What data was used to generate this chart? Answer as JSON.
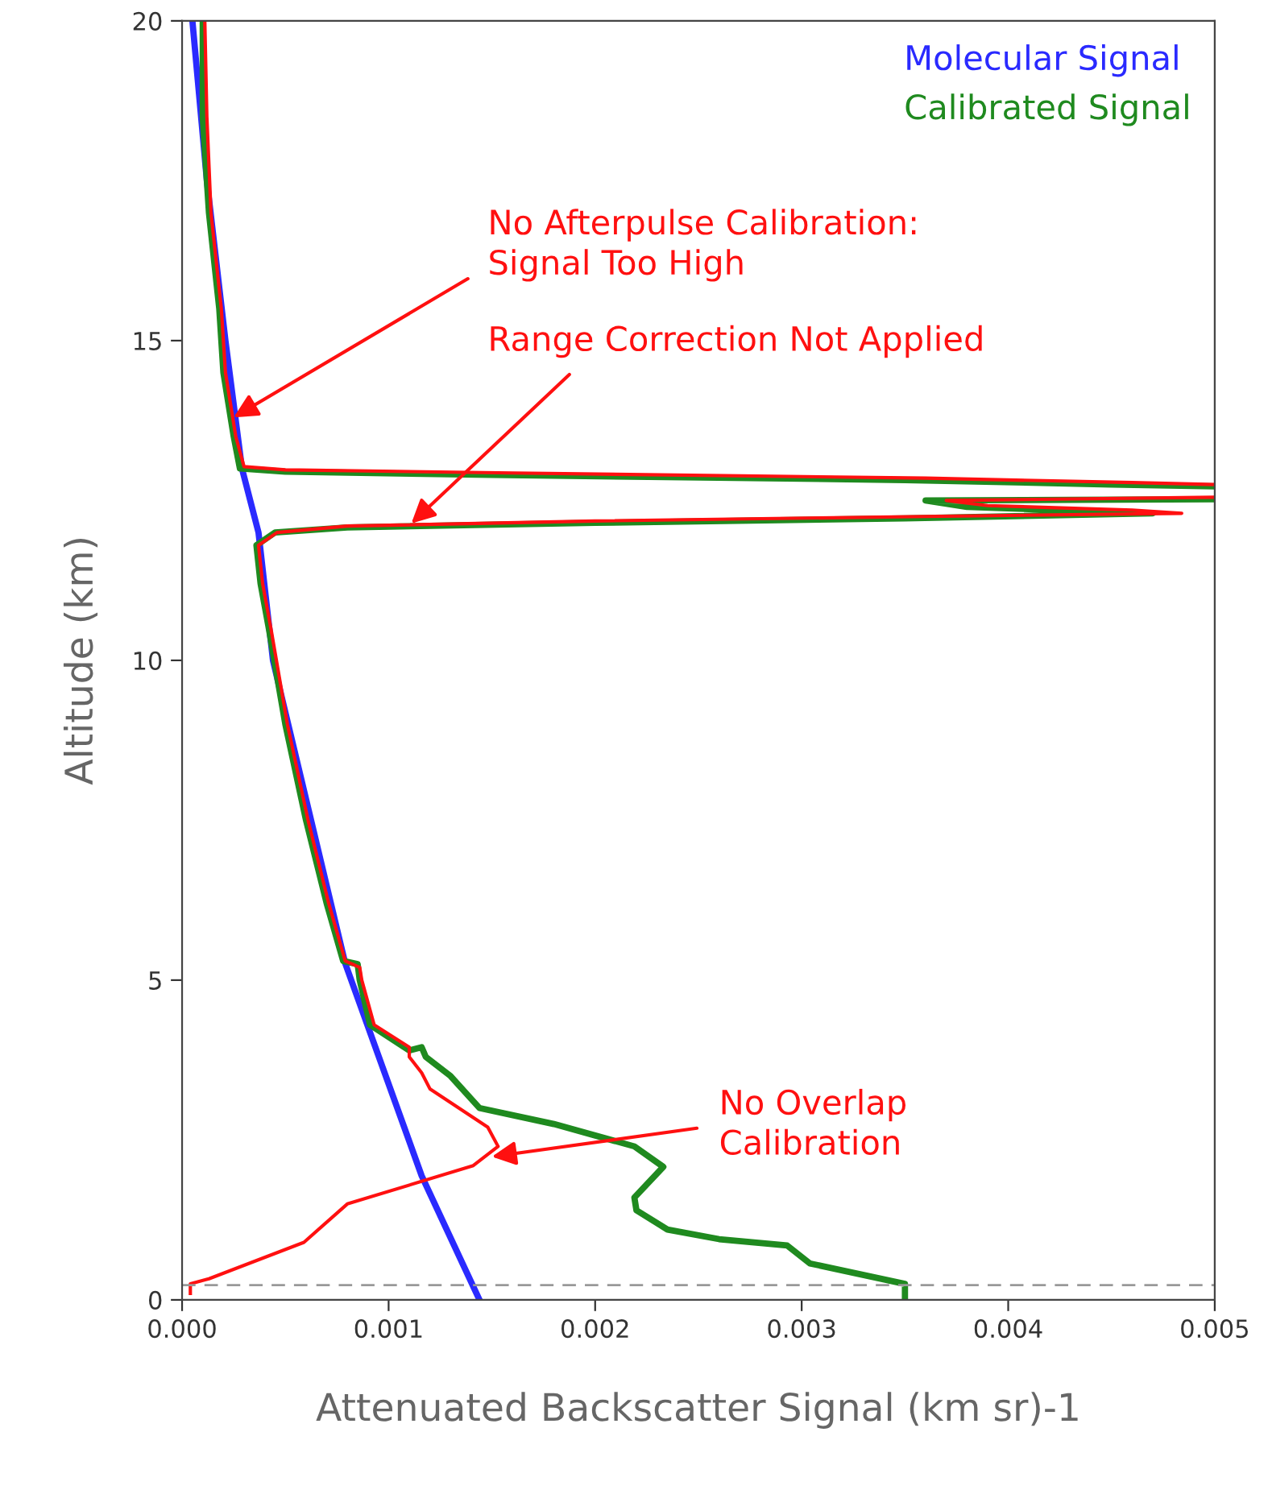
{
  "chart_data": {
    "type": "line",
    "xlabel": "Attenuated Backscatter Signal (km sr)-1",
    "ylabel": "Altitude (km)",
    "xlim": [
      0,
      0.005
    ],
    "xticks": [
      {
        "value": 0,
        "label": "0.000"
      },
      {
        "value": 0.001,
        "label": "0.001"
      },
      {
        "value": 0.002,
        "label": "0.002"
      },
      {
        "value": 0.003,
        "label": "0.003"
      },
      {
        "value": 0.004,
        "label": "0.004"
      },
      {
        "value": 0.005,
        "label": "0.005"
      }
    ],
    "ylim": [
      0,
      20
    ],
    "yticks": [
      0,
      5,
      10,
      15,
      20
    ],
    "grid": false,
    "legend": "top right",
    "series": [
      {
        "name": "Molecular Signal",
        "color": "#2a2aff",
        "x": [
          0.00144,
          0.00116,
          0.00079,
          0.00044,
          0.00037,
          0.00029,
          0.00021,
          0.00012,
          5e-05
        ],
        "values": [
          0,
          1.94,
          5.26,
          10,
          12,
          13,
          15,
          17.5,
          20
        ]
      },
      {
        "name": "Calibrated Signal",
        "color": "#1f8a1f",
        "x": [
          0.0035,
          0.0035,
          0.00304,
          0.00293,
          0.0026,
          0.00235,
          0.0022,
          0.00219,
          0.00233,
          0.00219,
          0.0018,
          0.00144,
          0.0013,
          0.00118,
          0.00116,
          0.0011,
          0.00091,
          0.00086,
          0.00085,
          0.00078,
          0.0007,
          0.0006,
          0.0005,
          0.00042,
          0.00038,
          0.00036,
          0.00045,
          0.0008,
          0.002,
          0.0035,
          0.0047,
          0.0044,
          0.0038,
          0.0036,
          0.005,
          null,
          0.005,
          0.0045,
          0.0035,
          0.0015,
          0.0005,
          0.00028,
          0.00025,
          0.0002,
          0.00018,
          0.00013,
          0.0001,
          0.0001
        ],
        "values": [
          0.05,
          0.25,
          0.57,
          0.85,
          0.95,
          1.1,
          1.4,
          1.6,
          2.08,
          2.4,
          2.75,
          3.0,
          3.5,
          3.8,
          3.95,
          3.9,
          4.3,
          5.0,
          5.25,
          5.3,
          6.2,
          7.5,
          9.0,
          10.5,
          11.2,
          11.8,
          12.0,
          12.08,
          12.15,
          12.22,
          12.3,
          12.33,
          12.4,
          12.5,
          12.52,
          null,
          12.72,
          12.75,
          12.82,
          12.9,
          12.95,
          13.0,
          13.5,
          14.5,
          15.5,
          17,
          18.5,
          20
        ]
      },
      {
        "color": "#ff1010",
        "x": [
          4e-05,
          4e-05,
          0.00013,
          0.00059,
          0.0008,
          0.00141,
          0.00153,
          0.00148,
          0.0012,
          0.00116,
          0.0011,
          0.0011,
          0.00093,
          0.00087,
          0.00086,
          0.00079,
          0.00071,
          0.00061,
          0.00051,
          0.00043,
          0.00039,
          0.00037,
          0.00046,
          0.0008,
          0.002,
          0.0036,
          0.00484,
          0.0046,
          0.0039,
          0.0037,
          0.005,
          null,
          0.005,
          0.0046,
          0.0036,
          0.0016,
          0.0005,
          0.0003,
          0.00026,
          0.00021,
          0.00019,
          0.00014,
          0.00012,
          0.00011
        ],
        "values": [
          0.1,
          0.25,
          0.33,
          0.9,
          1.5,
          2.1,
          2.4,
          2.7,
          3.3,
          3.55,
          3.8,
          3.95,
          4.3,
          5.0,
          5.2,
          5.3,
          6.2,
          7.5,
          9.0,
          10.5,
          11.2,
          11.8,
          12.0,
          12.1,
          12.18,
          12.25,
          12.3,
          12.35,
          12.42,
          12.5,
          12.55,
          null,
          12.75,
          12.78,
          12.85,
          12.93,
          12.98,
          13.03,
          13.5,
          14.5,
          15.5,
          17,
          18.5,
          20
        ]
      }
    ],
    "ref_lines": [
      {
        "axis": "y",
        "value": 0.23,
        "color": "#999999",
        "line_style": "dashed"
      }
    ],
    "annotations": [
      {
        "text": "No Afterpulse Calibration:\nSignal Too High",
        "x": 0.00025,
        "y": 13.8
      },
      {
        "text": "Range Correction Not Applied",
        "x": 0.00111,
        "y": 12.14
      },
      {
        "text": "No Overlap\nCalibration",
        "x": 0.0015,
        "y": 2.24
      }
    ]
  }
}
